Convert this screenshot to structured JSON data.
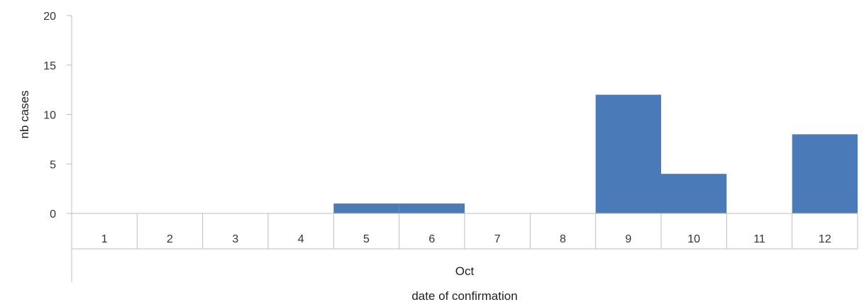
{
  "chart_data": {
    "type": "bar",
    "categories": [
      "1",
      "2",
      "3",
      "4",
      "5",
      "6",
      "7",
      "8",
      "9",
      "10",
      "11",
      "12"
    ],
    "values": [
      0,
      0,
      0,
      0,
      1,
      1,
      0,
      0,
      12,
      4,
      0,
      8
    ],
    "y_ticks": [
      "0",
      "5",
      "10",
      "15",
      "20"
    ],
    "ylim": [
      0,
      20
    ],
    "ylabel": "nb cases",
    "month_label": "Oct",
    "xlabel": "date of confirmation",
    "grid": false,
    "bar_color": "#4a7ab8",
    "axis_color": "#bdbdbd"
  }
}
